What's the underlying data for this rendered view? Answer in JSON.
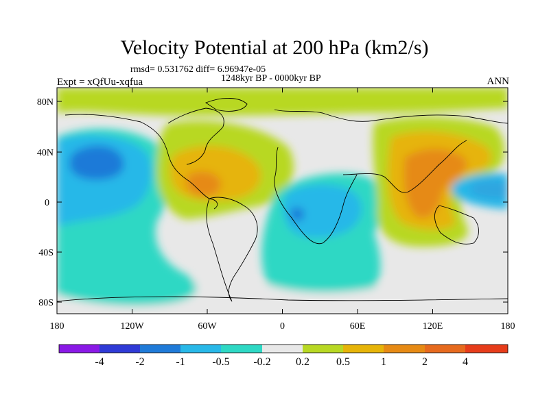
{
  "title": "Velocity Potential at 200 hPa (km2/s)",
  "stats": "rmsd= 0.531762  diff= 6.96947e-05",
  "period": "1248kyr BP - 0000kyr BP",
  "experiment": "Expt = xQfUu-xqfua",
  "season": "ANN",
  "lat_ticks": [
    "80N",
    "40N",
    "0",
    "40S",
    "80S"
  ],
  "lon_ticks": [
    "180",
    "120W",
    "60W",
    "0",
    "60E",
    "120E",
    "180"
  ],
  "colorbar": {
    "labels": [
      "-4",
      "-2",
      "-1",
      "-0.5",
      "-0.2",
      "0.2",
      "0.5",
      "1",
      "2",
      "4"
    ],
    "colors": [
      "#8a19e6",
      "#2f3ad6",
      "#1f7ad8",
      "#28b8e8",
      "#2ed8c4",
      "#e8e8e8",
      "#b8d823",
      "#e6b409",
      "#e68a14",
      "#e66a1e",
      "#e63c1a"
    ]
  }
}
